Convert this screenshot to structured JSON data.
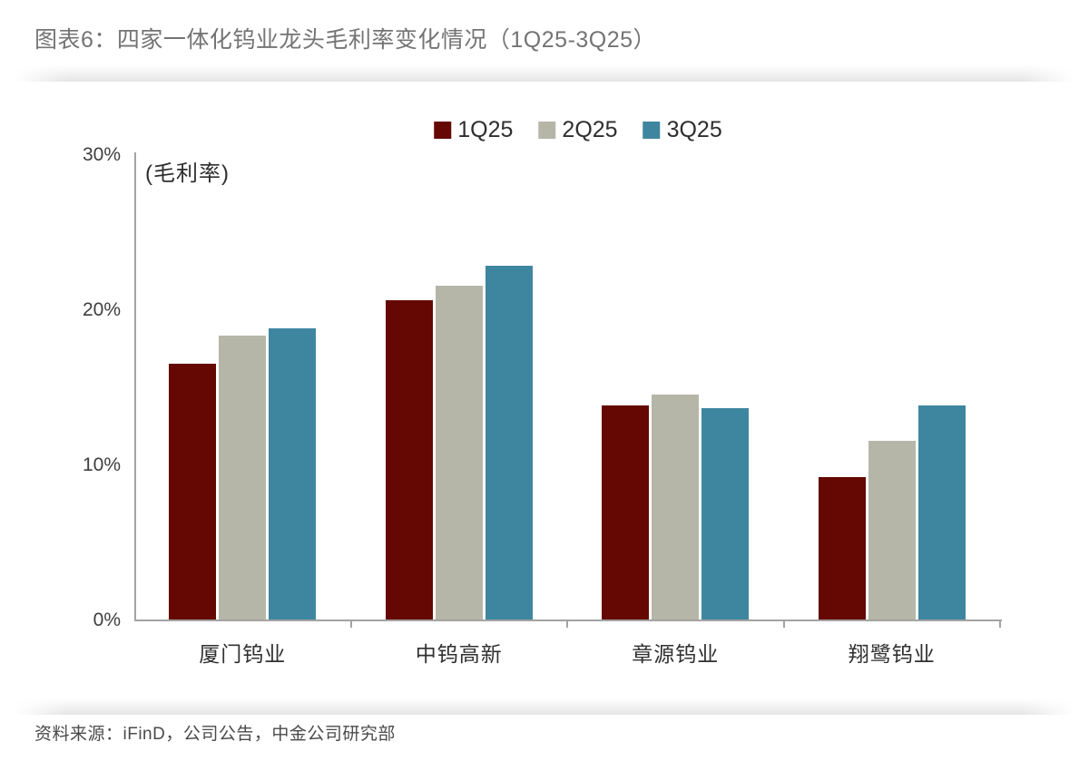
{
  "figure": {
    "title": "图表6：四家一体化钨业龙头毛利率变化情况（1Q25-3Q25）",
    "source": "资料来源：iFinD，公司公告，中金公司研究部"
  },
  "chart_data": {
    "type": "bar",
    "title": "图表6：四家一体化钨业龙头毛利率变化情况（1Q25-3Q25）",
    "axis_label": "(毛利率)",
    "xlabel": "",
    "ylabel": "毛利率 (%)",
    "ylim": [
      0,
      30
    ],
    "grid": false,
    "legend_position": "top-center",
    "categories": [
      "厦门钨业",
      "中钨高新",
      "章源钨业",
      "翔鹭钨业"
    ],
    "series": [
      {
        "name": "1Q25",
        "color": "#650702",
        "values": [
          16.5,
          20.6,
          13.8,
          9.2
        ]
      },
      {
        "name": "2Q25",
        "color": "#B6B6A8",
        "values": [
          18.3,
          21.5,
          14.5,
          11.5
        ]
      },
      {
        "name": "3Q25",
        "color": "#3E86A0",
        "values": [
          18.8,
          22.8,
          13.6,
          13.8
        ]
      }
    ],
    "yticks": [
      {
        "value": 30,
        "label": "30%"
      },
      {
        "value": 20,
        "label": "20%"
      },
      {
        "value": 10,
        "label": "10%"
      },
      {
        "value": 0,
        "label": "0%"
      }
    ],
    "axis_color": "#a3a3a3",
    "source": "资料来源：iFinD，公司公告，中金公司研究部"
  }
}
